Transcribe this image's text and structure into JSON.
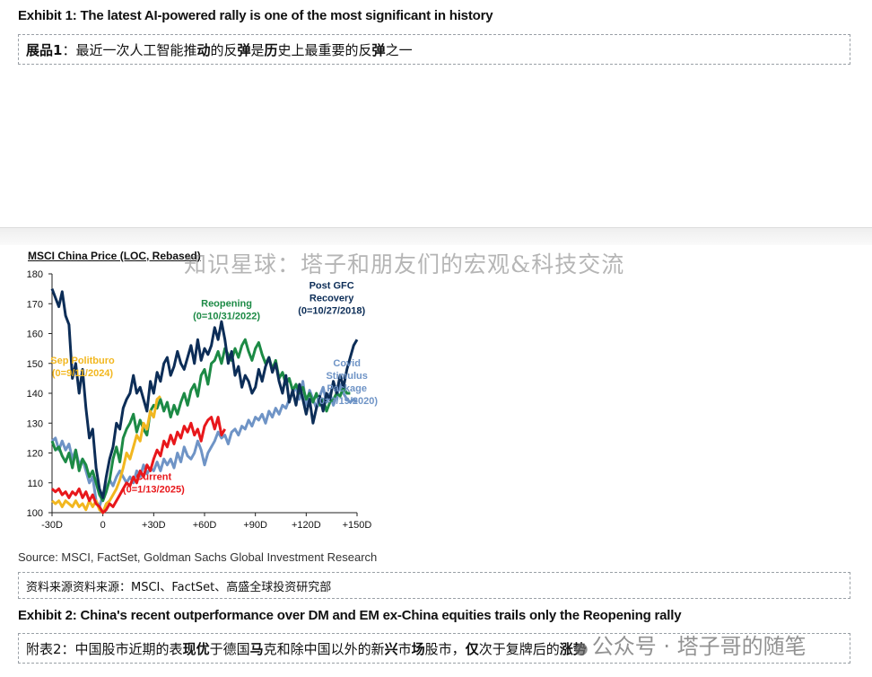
{
  "exhibit1": {
    "title": "Exhibit 1: The latest AI-powered rally is one of the most significant in history",
    "cn_parts": [
      {
        "t": "展品1",
        "b": true
      },
      {
        "t": "：最近一次人工智能推",
        "b": false
      },
      {
        "t": "动",
        "b": true
      },
      {
        "t": "的反",
        "b": false
      },
      {
        "t": "弹",
        "b": true
      },
      {
        "t": "是",
        "b": false
      },
      {
        "t": "历",
        "b": true
      },
      {
        "t": "史上最重要的反",
        "b": false
      },
      {
        "t": "弹",
        "b": true
      },
      {
        "t": "之一",
        "b": false
      }
    ]
  },
  "watermark": "知识星球：塔子和朋友们的宏观&科技交流",
  "source": {
    "en": "Source: MSCI, FactSet, Goldman Sachs Global Investment Research",
    "cn": "资料来源资料来源：MSCI、FactSet、高盛全球投资研究部"
  },
  "exhibit2": {
    "title": "Exhibit 2: China's recent outperformance over DM and EM ex-China equities trails only the Reopening rally",
    "cn_parts": [
      {
        "t": "附表2",
        "b": false
      },
      {
        "t": "：中国股市近期的表",
        "b": false
      },
      {
        "t": "现优",
        "b": true
      },
      {
        "t": "于德国",
        "b": false
      },
      {
        "t": "马",
        "b": true
      },
      {
        "t": "克和除中国以外的新",
        "b": false
      },
      {
        "t": "兴",
        "b": true
      },
      {
        "t": "市",
        "b": false
      },
      {
        "t": "场",
        "b": true
      },
      {
        "t": "股市，",
        "b": false
      },
      {
        "t": "仅",
        "b": true
      },
      {
        "t": "次于复牌后的",
        "b": false
      },
      {
        "t": "涨势",
        "b": true
      }
    ]
  },
  "brand_watermark": {
    "icon": "wechat-icon",
    "text": "公众号 · 塔子哥的随笔"
  },
  "chart_data": {
    "type": "line",
    "title": "MSCI China Price (LOC, Rebased)",
    "xlabel": "",
    "ylabel": "",
    "xlim": [
      -30,
      150
    ],
    "ylim": [
      100,
      180
    ],
    "xticks": [
      -30,
      0,
      30,
      60,
      90,
      120,
      150
    ],
    "xtick_labels": [
      "-30D",
      "0",
      "+30D",
      "+60D",
      "+90D",
      "+120D",
      "+150D"
    ],
    "yticks": [
      100,
      110,
      120,
      130,
      140,
      150,
      160,
      170,
      180
    ],
    "grid": false,
    "series": [
      {
        "name": "Post GFC Recovery (0=10/27/2018)",
        "label_lines": [
          "Post GFC",
          "Recovery",
          "(0=10/27/2018)"
        ],
        "color": "#0c2d57",
        "x": [
          -30,
          -28,
          -26,
          -24,
          -22,
          -20,
          -18,
          -16,
          -14,
          -12,
          -10,
          -8,
          -6,
          -4,
          -2,
          0,
          2,
          4,
          6,
          8,
          10,
          12,
          14,
          16,
          18,
          20,
          22,
          24,
          26,
          28,
          30,
          32,
          34,
          36,
          38,
          40,
          42,
          44,
          46,
          48,
          50,
          52,
          54,
          56,
          58,
          60,
          62,
          64,
          66,
          68,
          70,
          72,
          74,
          76,
          78,
          80,
          82,
          84,
          86,
          88,
          90,
          92,
          94,
          96,
          98,
          100,
          102,
          104,
          106,
          108,
          110,
          112,
          114,
          116,
          118,
          120,
          122,
          124,
          126,
          128,
          130,
          132,
          134,
          136,
          138,
          140,
          142,
          144,
          146,
          148,
          150
        ],
        "y": [
          175,
          172,
          169,
          174,
          166,
          163,
          145,
          150,
          140,
          148,
          135,
          125,
          128,
          115,
          108,
          105,
          112,
          118,
          122,
          130,
          128,
          135,
          138,
          140,
          146,
          140,
          142,
          138,
          134,
          144,
          140,
          147,
          144,
          150,
          152,
          146,
          149,
          154,
          150,
          148,
          152,
          156,
          150,
          158,
          151,
          155,
          153,
          156,
          162,
          158,
          164,
          158,
          150,
          154,
          146,
          149,
          142,
          146,
          144,
          140,
          142,
          148,
          144,
          149,
          152,
          147,
          150,
          144,
          140,
          146,
          137,
          141,
          136,
          143,
          138,
          133,
          138,
          130,
          135,
          139,
          134,
          140,
          138,
          144,
          140,
          146,
          142,
          148,
          152,
          156,
          158
        ]
      },
      {
        "name": "Reopening (0=10/31/2022)",
        "label_lines": [
          "Reopening",
          "(0=10/31/2022)"
        ],
        "color": "#1c8a45",
        "x": [
          -30,
          -28,
          -26,
          -24,
          -22,
          -20,
          -18,
          -16,
          -14,
          -12,
          -10,
          -8,
          -6,
          -4,
          -2,
          0,
          2,
          4,
          6,
          8,
          10,
          12,
          14,
          16,
          18,
          20,
          22,
          24,
          26,
          28,
          30,
          32,
          34,
          36,
          38,
          40,
          42,
          44,
          46,
          48,
          50,
          52,
          54,
          56,
          58,
          60,
          62,
          64,
          66,
          68,
          70,
          72,
          74,
          76,
          78,
          80,
          82,
          84,
          86,
          88,
          90,
          92,
          94,
          96,
          98,
          100,
          102,
          104,
          106,
          108,
          110,
          112,
          114,
          116,
          118,
          120,
          122,
          124,
          126,
          128,
          130,
          132,
          134,
          136,
          138,
          140,
          142,
          144,
          146
        ],
        "y": [
          124,
          121,
          122,
          119,
          117,
          120,
          115,
          121,
          114,
          118,
          116,
          112,
          114,
          110,
          106,
          104,
          107,
          111,
          118,
          122,
          117,
          125,
          128,
          130,
          133,
          127,
          131,
          128,
          126,
          134,
          136,
          135,
          138,
          134,
          137,
          132,
          136,
          133,
          137,
          140,
          136,
          141,
          143,
          139,
          146,
          148,
          143,
          150,
          151,
          154,
          150,
          155,
          153,
          151,
          155,
          152,
          156,
          158,
          154,
          151,
          155,
          157,
          153,
          150,
          152,
          148,
          151,
          145,
          147,
          143,
          145,
          141,
          143,
          140,
          142,
          138,
          140,
          137,
          140,
          136,
          138,
          134,
          137,
          138,
          140,
          139,
          142,
          140,
          140
        ]
      },
      {
        "name": "Covid Stimulus Package (0=3/19/2020)",
        "label_lines": [
          "Covid",
          "Stimulus",
          "Package",
          "(0=3/19/2020)"
        ],
        "color": "#6f94c6",
        "x": [
          -30,
          -28,
          -26,
          -24,
          -22,
          -20,
          -18,
          -16,
          -14,
          -12,
          -10,
          -8,
          -6,
          -4,
          -2,
          0,
          2,
          4,
          6,
          8,
          10,
          12,
          14,
          16,
          18,
          20,
          22,
          24,
          26,
          28,
          30,
          32,
          34,
          36,
          38,
          40,
          42,
          44,
          46,
          48,
          50,
          52,
          54,
          56,
          58,
          60,
          62,
          64,
          66,
          68,
          70,
          72,
          74,
          76,
          78,
          80,
          82,
          84,
          86,
          88,
          90,
          92,
          94,
          96,
          98,
          100,
          102,
          104,
          106,
          108,
          110,
          112,
          114,
          116,
          118,
          120,
          122,
          124,
          126,
          128,
          130,
          132,
          134,
          136,
          138,
          140,
          142,
          144,
          146,
          148,
          150
        ],
        "y": [
          124,
          125,
          121,
          124,
          121,
          123,
          118,
          121,
          116,
          118,
          114,
          110,
          112,
          104,
          102,
          106,
          108,
          111,
          109,
          112,
          114,
          112,
          110,
          112,
          110,
          114,
          112,
          116,
          113,
          115,
          114,
          117,
          114,
          118,
          116,
          118,
          115,
          120,
          117,
          122,
          119,
          118,
          120,
          124,
          121,
          116,
          120,
          122,
          124,
          127,
          125,
          126,
          123,
          127,
          128,
          126,
          129,
          128,
          131,
          129,
          132,
          131,
          133,
          130,
          134,
          132,
          135,
          133,
          136,
          135,
          138,
          140,
          142,
          138,
          144,
          136,
          141,
          138,
          135,
          139,
          142,
          137,
          140,
          136,
          139,
          143,
          140,
          138,
          137,
          138,
          137
        ]
      },
      {
        "name": "Sep Politburo (0=9/11/2024)",
        "label_lines": [
          "Sep Politburo",
          "(0=9/11/2024)"
        ],
        "color": "#f2b71f",
        "x": [
          -30,
          -28,
          -26,
          -24,
          -22,
          -20,
          -18,
          -16,
          -14,
          -12,
          -10,
          -8,
          -6,
          -4,
          -2,
          0,
          2,
          4,
          6,
          8,
          10,
          12,
          14,
          16,
          18,
          20,
          22,
          24,
          26,
          28,
          30,
          32,
          34
        ],
        "y": [
          104,
          103,
          104,
          102,
          104,
          103,
          102,
          104,
          102,
          103,
          101,
          104,
          102,
          104,
          101,
          100,
          103,
          104,
          106,
          108,
          111,
          115,
          120,
          118,
          122,
          126,
          124,
          130,
          128,
          134,
          132,
          138,
          139
        ]
      },
      {
        "name": "Current (0=1/13/2025)",
        "label_lines": [
          "Current",
          "(0=1/13/2025)"
        ],
        "color": "#e8171b",
        "x": [
          -30,
          -28,
          -26,
          -24,
          -22,
          -20,
          -18,
          -16,
          -14,
          -12,
          -10,
          -8,
          -6,
          -4,
          -2,
          0,
          2,
          4,
          6,
          8,
          10,
          12,
          14,
          16,
          18,
          20,
          22,
          24,
          26,
          28,
          30,
          32,
          34,
          36,
          38,
          40,
          42,
          44,
          46,
          48,
          50,
          52,
          54,
          56,
          58,
          60,
          62,
          64,
          66,
          68,
          70,
          72
        ],
        "y": [
          108,
          107,
          108,
          106,
          107,
          105,
          107,
          106,
          108,
          105,
          107,
          104,
          106,
          103,
          102,
          100,
          101,
          103,
          102,
          104,
          106,
          108,
          110,
          109,
          112,
          110,
          114,
          112,
          116,
          114,
          118,
          121,
          119,
          124,
          122,
          126,
          123,
          127,
          125,
          129,
          127,
          130,
          126,
          128,
          124,
          129,
          131,
          132,
          128,
          132,
          126,
          128
        ]
      }
    ]
  }
}
